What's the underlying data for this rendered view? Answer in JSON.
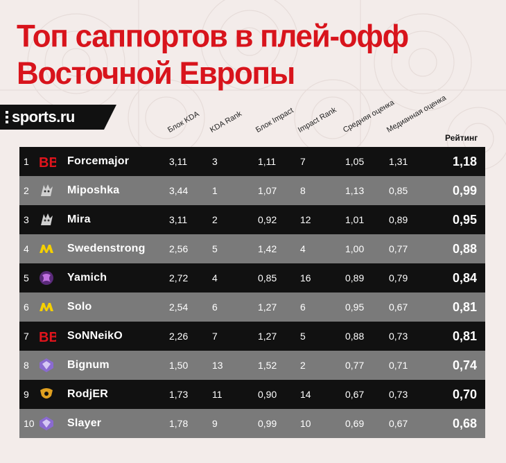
{
  "title": {
    "line1": "Топ саппортов в плей-офф",
    "line2": "Восточной Европы"
  },
  "brand": "sports.ru",
  "columns": [
    "Блок KDA",
    "KDA Rank",
    "Блок Impact",
    "Impact Rank",
    "Средняя оценка",
    "Медианная оценка"
  ],
  "rating_header": "Рейтинг",
  "rows": [
    {
      "rank": "1",
      "team": "bb-logo",
      "name": "Forcemajor",
      "kda": "3,11",
      "kda_rank": "3",
      "impact": "1,11",
      "impact_rank": "7",
      "avg": "1,05",
      "median": "1,31",
      "rating": "1,18"
    },
    {
      "rank": "2",
      "team": "spirit-logo",
      "name": "Miposhka",
      "kda": "3,44",
      "kda_rank": "1",
      "impact": "1,07",
      "impact_rank": "8",
      "avg": "1,13",
      "median": "0,85",
      "rating": "0,99"
    },
    {
      "rank": "3",
      "team": "spirit-logo",
      "name": "Mira",
      "kda": "3,11",
      "kda_rank": "2",
      "impact": "0,92",
      "impact_rank": "12",
      "avg": "1,01",
      "median": "0,89",
      "rating": "0,95"
    },
    {
      "rank": "4",
      "team": "navi-logo",
      "name": "Swedenstrong",
      "kda": "2,56",
      "kda_rank": "5",
      "impact": "1,42",
      "impact_rank": "4",
      "avg": "1,00",
      "median": "0,77",
      "rating": "0,88"
    },
    {
      "rank": "5",
      "team": "virtus-logo",
      "name": "Yamich",
      "kda": "2,72",
      "kda_rank": "4",
      "impact": "0,85",
      "impact_rank": "16",
      "avg": "0,89",
      "median": "0,79",
      "rating": "0,84"
    },
    {
      "rank": "6",
      "team": "navi-logo",
      "name": "Solo",
      "kda": "2,54",
      "kda_rank": "6",
      "impact": "1,27",
      "impact_rank": "6",
      "avg": "0,95",
      "median": "0,67",
      "rating": "0,81"
    },
    {
      "rank": "7",
      "team": "bb-logo",
      "name": "SoNNeikO",
      "kda": "2,26",
      "kda_rank": "7",
      "impact": "1,27",
      "impact_rank": "5",
      "avg": "0,88",
      "median": "0,73",
      "rating": "0,81"
    },
    {
      "rank": "8",
      "team": "gem-logo",
      "name": "Bignum",
      "kda": "1,50",
      "kda_rank": "13",
      "impact": "1,52",
      "impact_rank": "2",
      "avg": "0,77",
      "median": "0,71",
      "rating": "0,74"
    },
    {
      "rank": "9",
      "team": "gold-logo",
      "name": "RodjER",
      "kda": "1,73",
      "kda_rank": "11",
      "impact": "0,90",
      "impact_rank": "14",
      "avg": "0,67",
      "median": "0,73",
      "rating": "0,70"
    },
    {
      "rank": "10",
      "team": "gem-logo",
      "name": "Slayer",
      "kda": "1,78",
      "kda_rank": "9",
      "impact": "0,99",
      "impact_rank": "10",
      "avg": "0,69",
      "median": "0,67",
      "rating": "0,68"
    }
  ],
  "colors": {
    "title": "#d8141c",
    "dark_row": "#111111",
    "grey_row": "#7a7a7a",
    "background": "#f3ecea"
  }
}
